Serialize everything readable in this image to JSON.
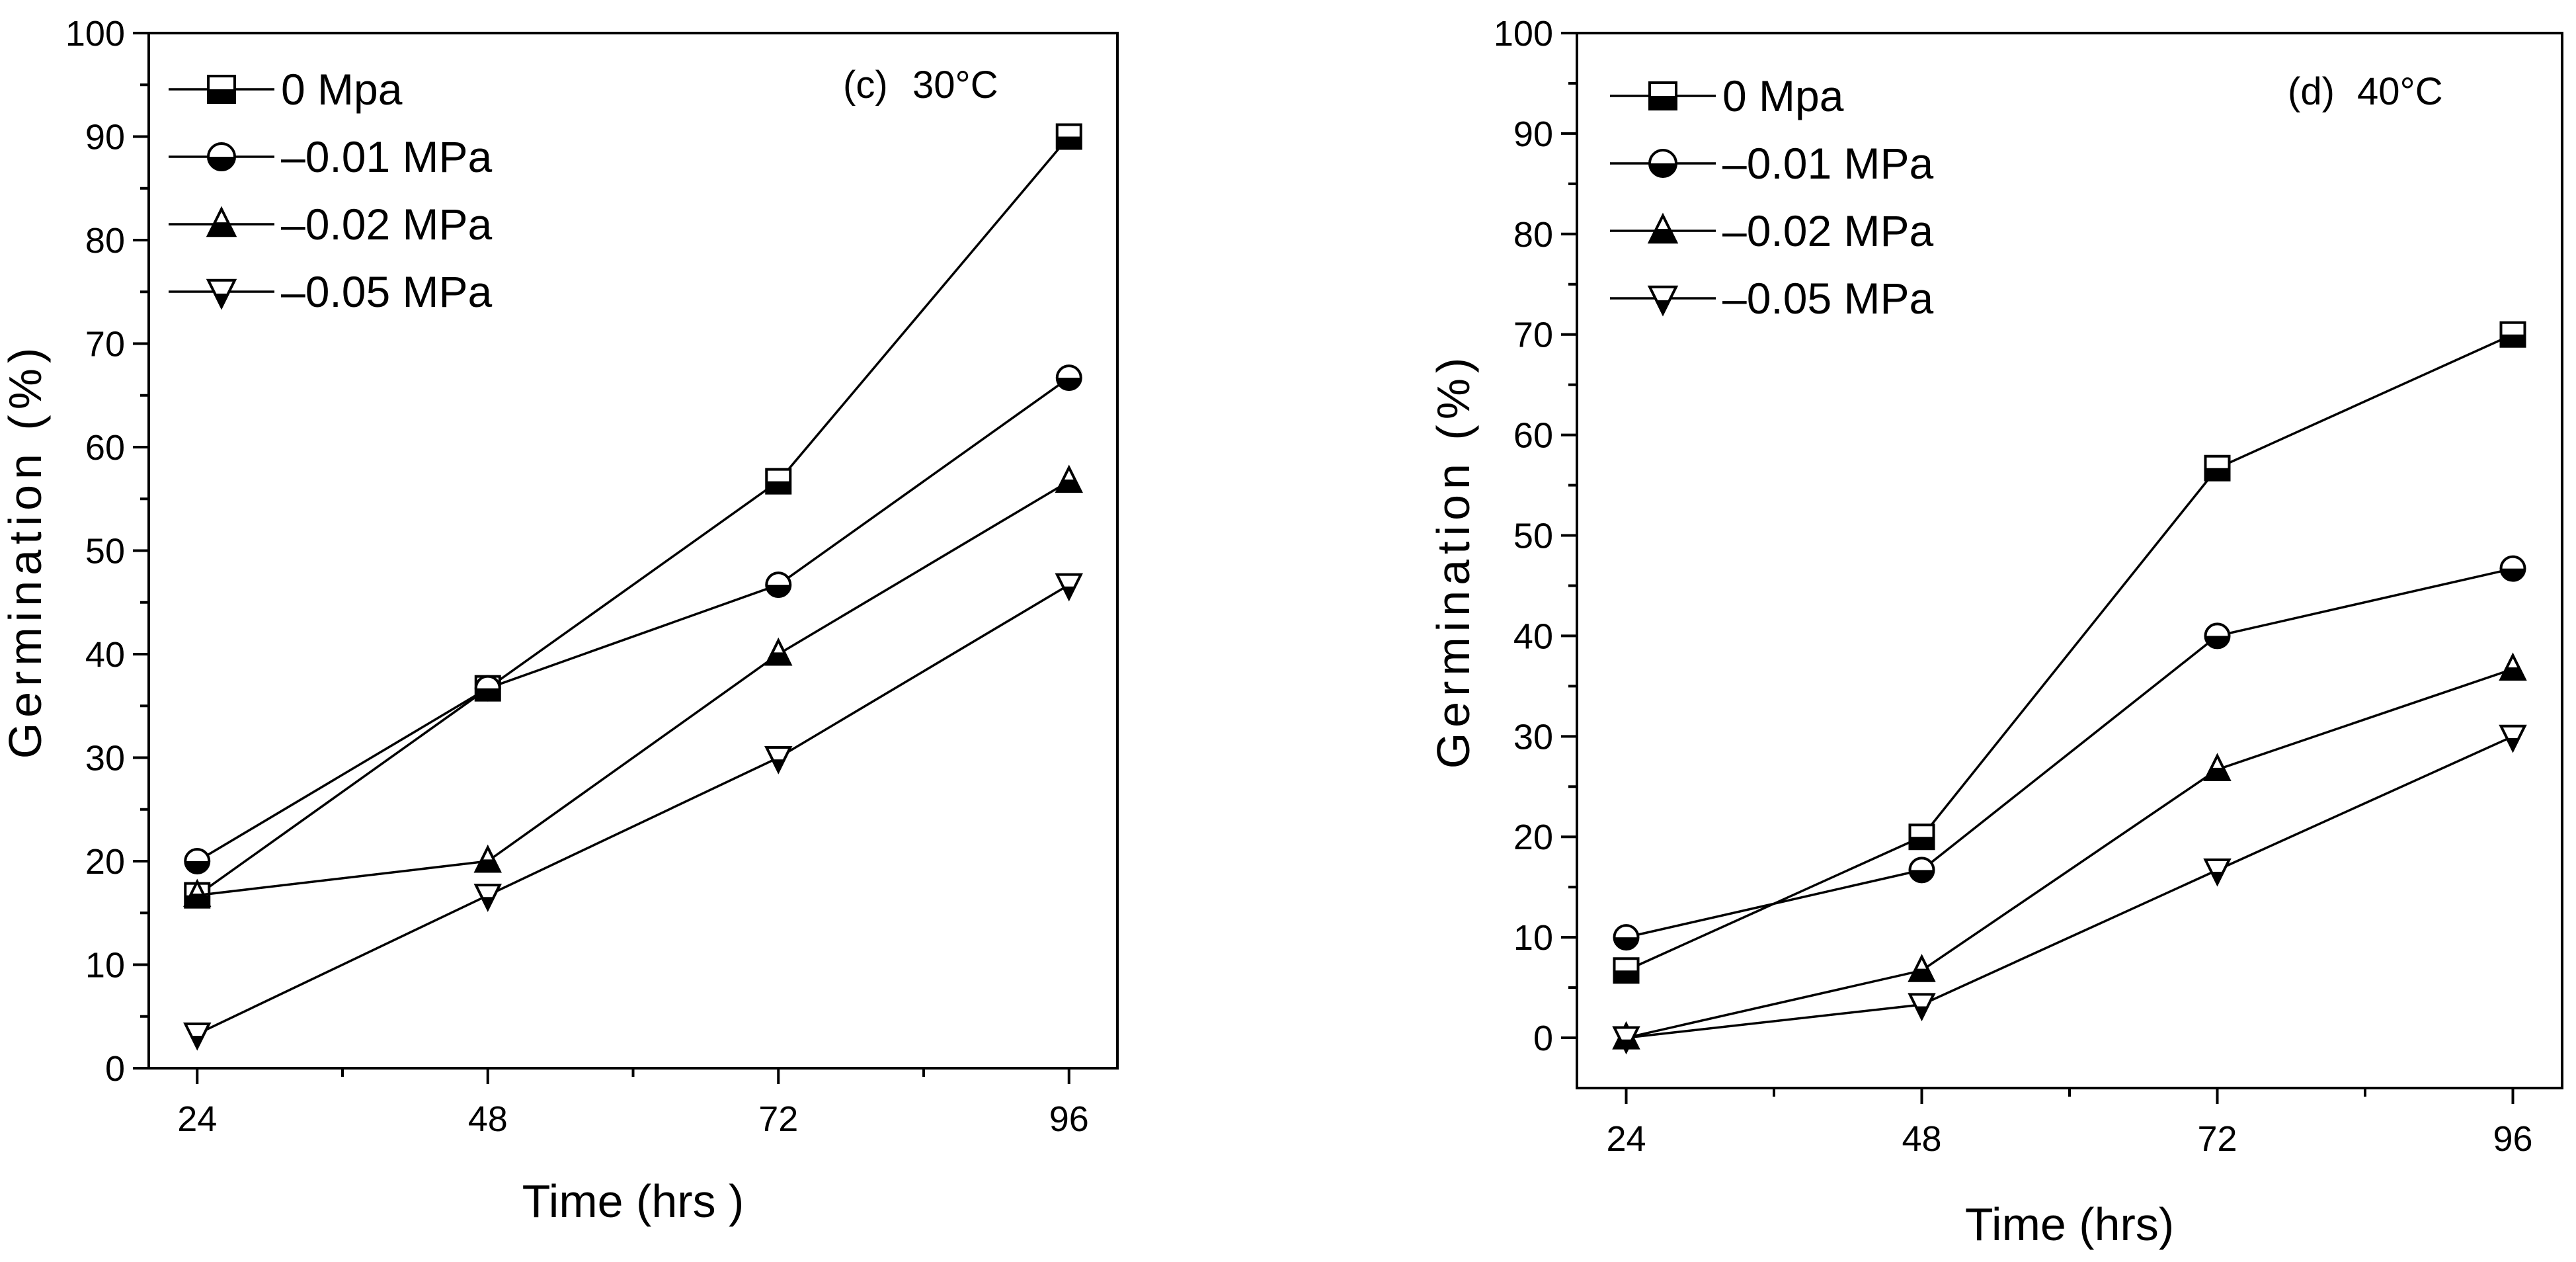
{
  "chart_data": [
    {
      "type": "line",
      "panel_label": "(c)",
      "title": "30°C",
      "xlabel": "Time (hrs )",
      "ylabel": "Germination (%)",
      "x": [
        24,
        48,
        72,
        96
      ],
      "xlim": [
        20,
        100
      ],
      "ylim": [
        0,
        100
      ],
      "yticks": [
        0,
        10,
        20,
        30,
        40,
        50,
        60,
        70,
        80,
        90,
        100
      ],
      "grid": false,
      "legend_position": "top-left",
      "series": [
        {
          "name": "0 Mpa",
          "marker": "square",
          "values": [
            16.7,
            36.7,
            56.7,
            90
          ]
        },
        {
          "name": "–0.01 MPa",
          "marker": "circle",
          "values": [
            20,
            36.7,
            46.7,
            66.7
          ]
        },
        {
          "name": "–0.02 MPa",
          "marker": "triangle-up",
          "values": [
            16.7,
            20,
            40,
            56.7
          ]
        },
        {
          "name": "–0.05 MPa",
          "marker": "triangle-down",
          "values": [
            3.3,
            16.7,
            30,
            46.7
          ]
        }
      ]
    },
    {
      "type": "line",
      "panel_label": "(d)",
      "title": "40°C",
      "xlabel": "Time (hrs)",
      "ylabel": "Germination (%)",
      "x": [
        24,
        48,
        72,
        96
      ],
      "xlim": [
        20,
        100
      ],
      "ylim": [
        -5,
        100
      ],
      "yticks": [
        0,
        10,
        20,
        30,
        40,
        50,
        60,
        70,
        80,
        90,
        100
      ],
      "grid": false,
      "legend_position": "top-left",
      "series": [
        {
          "name": "0 Mpa",
          "marker": "square",
          "values": [
            6.7,
            20,
            56.7,
            70
          ]
        },
        {
          "name": "–0.01 MPa",
          "marker": "circle",
          "values": [
            10,
            16.7,
            40,
            46.7
          ]
        },
        {
          "name": "–0.02 MPa",
          "marker": "triangle-up",
          "values": [
            0,
            6.7,
            26.7,
            36.7
          ]
        },
        {
          "name": "–0.05 MPa",
          "marker": "triangle-down",
          "values": [
            0,
            3.3,
            16.7,
            30
          ]
        }
      ]
    }
  ]
}
